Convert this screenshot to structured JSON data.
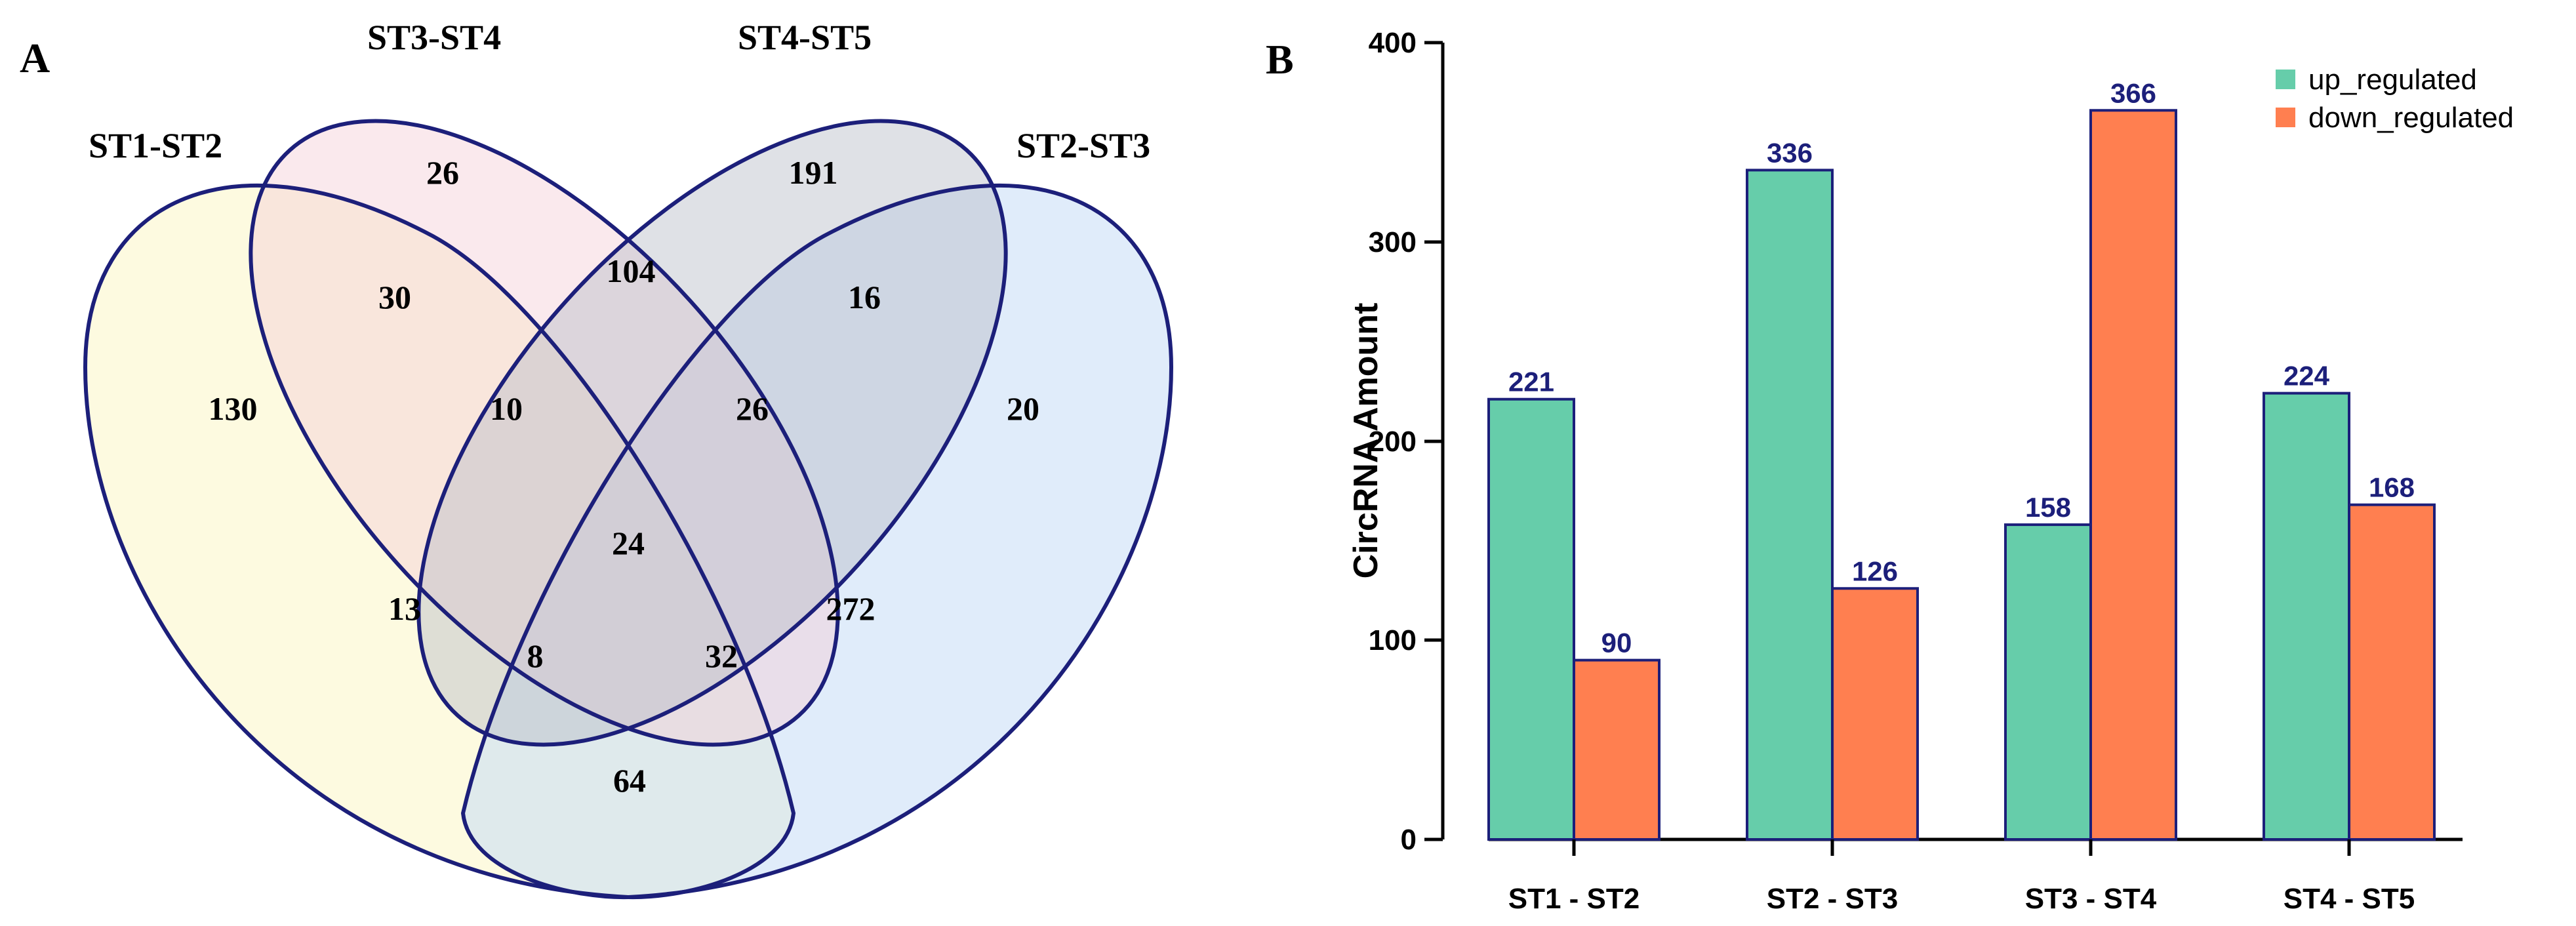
{
  "panel_a": {
    "label": "A",
    "sets": [
      "ST1-ST2",
      "ST3-ST4",
      "ST4-ST5",
      "ST2-ST3"
    ],
    "regions": [
      {
        "id": "only-st1-st2",
        "sets": [
          "ST1-ST2"
        ],
        "value": "130"
      },
      {
        "id": "only-st3-st4",
        "sets": [
          "ST3-ST4"
        ],
        "value": "26"
      },
      {
        "id": "only-st4-st5",
        "sets": [
          "ST4-ST5"
        ],
        "value": "191"
      },
      {
        "id": "only-st2-st3",
        "sets": [
          "ST2-ST3"
        ],
        "value": "20"
      },
      {
        "id": "st1-st3",
        "sets": [
          "ST1-ST2",
          "ST3-ST4"
        ],
        "value": "30"
      },
      {
        "id": "st3-st4s5",
        "sets": [
          "ST3-ST4",
          "ST4-ST5"
        ],
        "value": "104"
      },
      {
        "id": "st4s5-st2",
        "sets": [
          "ST4-ST5",
          "ST2-ST3"
        ],
        "value": "16"
      },
      {
        "id": "st1-st3-st4s5",
        "sets": [
          "ST1-ST2",
          "ST3-ST4",
          "ST4-ST5"
        ],
        "value": "10"
      },
      {
        "id": "st3-st4s5-st2",
        "sets": [
          "ST3-ST4",
          "ST4-ST5",
          "ST2-ST3"
        ],
        "value": "26"
      },
      {
        "id": "all-four",
        "sets": [
          "ST1-ST2",
          "ST3-ST4",
          "ST4-ST5",
          "ST2-ST3"
        ],
        "value": "24"
      },
      {
        "id": "st1-st4s5",
        "sets": [
          "ST1-ST2",
          "ST4-ST5"
        ],
        "value": "13"
      },
      {
        "id": "st3-st2",
        "sets": [
          "ST3-ST4",
          "ST2-ST3"
        ],
        "value": "272"
      },
      {
        "id": "st1-st4s5-st2",
        "sets": [
          "ST1-ST2",
          "ST4-ST5",
          "ST2-ST3"
        ],
        "value": "8"
      },
      {
        "id": "st1-st3-st2",
        "sets": [
          "ST1-ST2",
          "ST3-ST4",
          "ST2-ST3"
        ],
        "value": "32"
      },
      {
        "id": "st1-st2",
        "sets": [
          "ST1-ST2",
          "ST2-ST3"
        ],
        "value": "64"
      }
    ],
    "colors": {
      "outline": "#1c1f7a",
      "fill_st1_st2": "#fbf6c6",
      "fill_st3_st4": "#f5cfd6",
      "fill_st4_st5": "#b7bcc7",
      "fill_st2_st3": "#c6dcf6"
    }
  },
  "panel_b": {
    "label": "B",
    "chart_data": {
      "type": "bar",
      "categories": [
        "ST1 - ST2",
        "ST2 - ST3",
        "ST3 - ST4",
        "ST4 - ST5"
      ],
      "series": [
        {
          "name": "up_regulated",
          "values": [
            221,
            336,
            158,
            224
          ],
          "color": "#66cdaa"
        },
        {
          "name": "down_regulated",
          "values": [
            90,
            126,
            366,
            168
          ],
          "color": "#ff7f50"
        }
      ],
      "title": "",
      "xlabel": "",
      "ylabel": "CircRNA Amount",
      "ylim": [
        0,
        400
      ],
      "yticks": [
        "0",
        "100",
        "200",
        "300",
        "400"
      ],
      "legend": "top-right",
      "value_label_color": "#1c1f7a",
      "bar_outline": "#1c1f7a"
    }
  }
}
